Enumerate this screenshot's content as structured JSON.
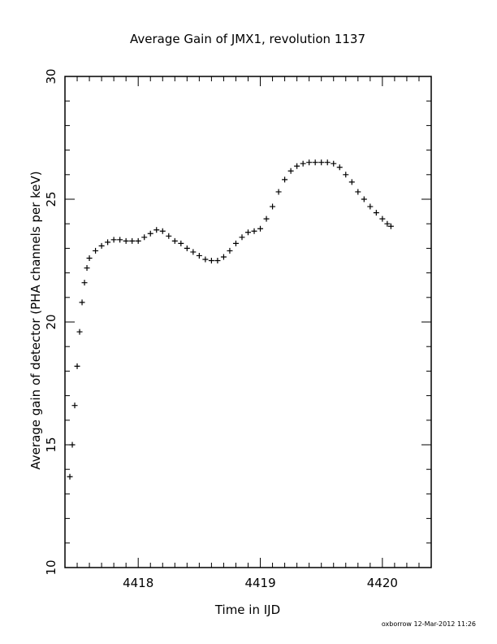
{
  "chart_data": {
    "type": "scatter",
    "title": "Average Gain of JMX1, revolution 1137",
    "xlabel": "Time in IJD",
    "ylabel": "Average gain of detector (PHA channels per keV)",
    "xlim": [
      4417.4,
      4420.4
    ],
    "ylim": [
      10,
      30
    ],
    "xticks": [
      4418,
      4419,
      4420
    ],
    "yticks": [
      10,
      15,
      20,
      25,
      30
    ],
    "marker": "+",
    "grid": false,
    "series": [
      {
        "x": [
          4417.44,
          4417.46,
          4417.48,
          4417.5,
          4417.52,
          4417.54,
          4417.56,
          4417.58,
          4417.6,
          4417.65,
          4417.7,
          4417.75,
          4417.8,
          4417.85,
          4417.9,
          4417.95,
          4418.0,
          4418.05,
          4418.1,
          4418.15,
          4418.2,
          4418.25,
          4418.3,
          4418.35,
          4418.4,
          4418.45,
          4418.5,
          4418.55,
          4418.6,
          4418.65,
          4418.7,
          4418.75,
          4418.8,
          4418.85,
          4418.9,
          4418.95,
          4419.0,
          4419.05,
          4419.1,
          4419.15,
          4419.2,
          4419.25,
          4419.3,
          4419.35,
          4419.4,
          4419.45,
          4419.5,
          4419.55,
          4419.6,
          4419.65,
          4419.7,
          4419.75,
          4419.8,
          4419.85,
          4419.9,
          4419.95,
          4420.0,
          4420.04,
          4420.07
        ],
        "y": [
          13.7,
          15.0,
          16.6,
          18.2,
          19.6,
          20.8,
          21.6,
          22.2,
          22.6,
          22.9,
          23.1,
          23.25,
          23.35,
          23.35,
          23.3,
          23.3,
          23.3,
          23.45,
          23.6,
          23.75,
          23.7,
          23.5,
          23.3,
          23.2,
          23.0,
          22.85,
          22.7,
          22.55,
          22.5,
          22.5,
          22.65,
          22.9,
          23.2,
          23.45,
          23.65,
          23.7,
          23.8,
          24.2,
          24.7,
          25.3,
          25.8,
          26.15,
          26.35,
          26.45,
          26.5,
          26.5,
          26.5,
          26.5,
          26.45,
          26.3,
          26.0,
          25.7,
          25.3,
          25.0,
          24.7,
          24.45,
          24.2,
          24.0,
          23.9
        ]
      }
    ]
  },
  "footer": {
    "stamp": "oxborrow 12-Mar-2012 11:26"
  }
}
